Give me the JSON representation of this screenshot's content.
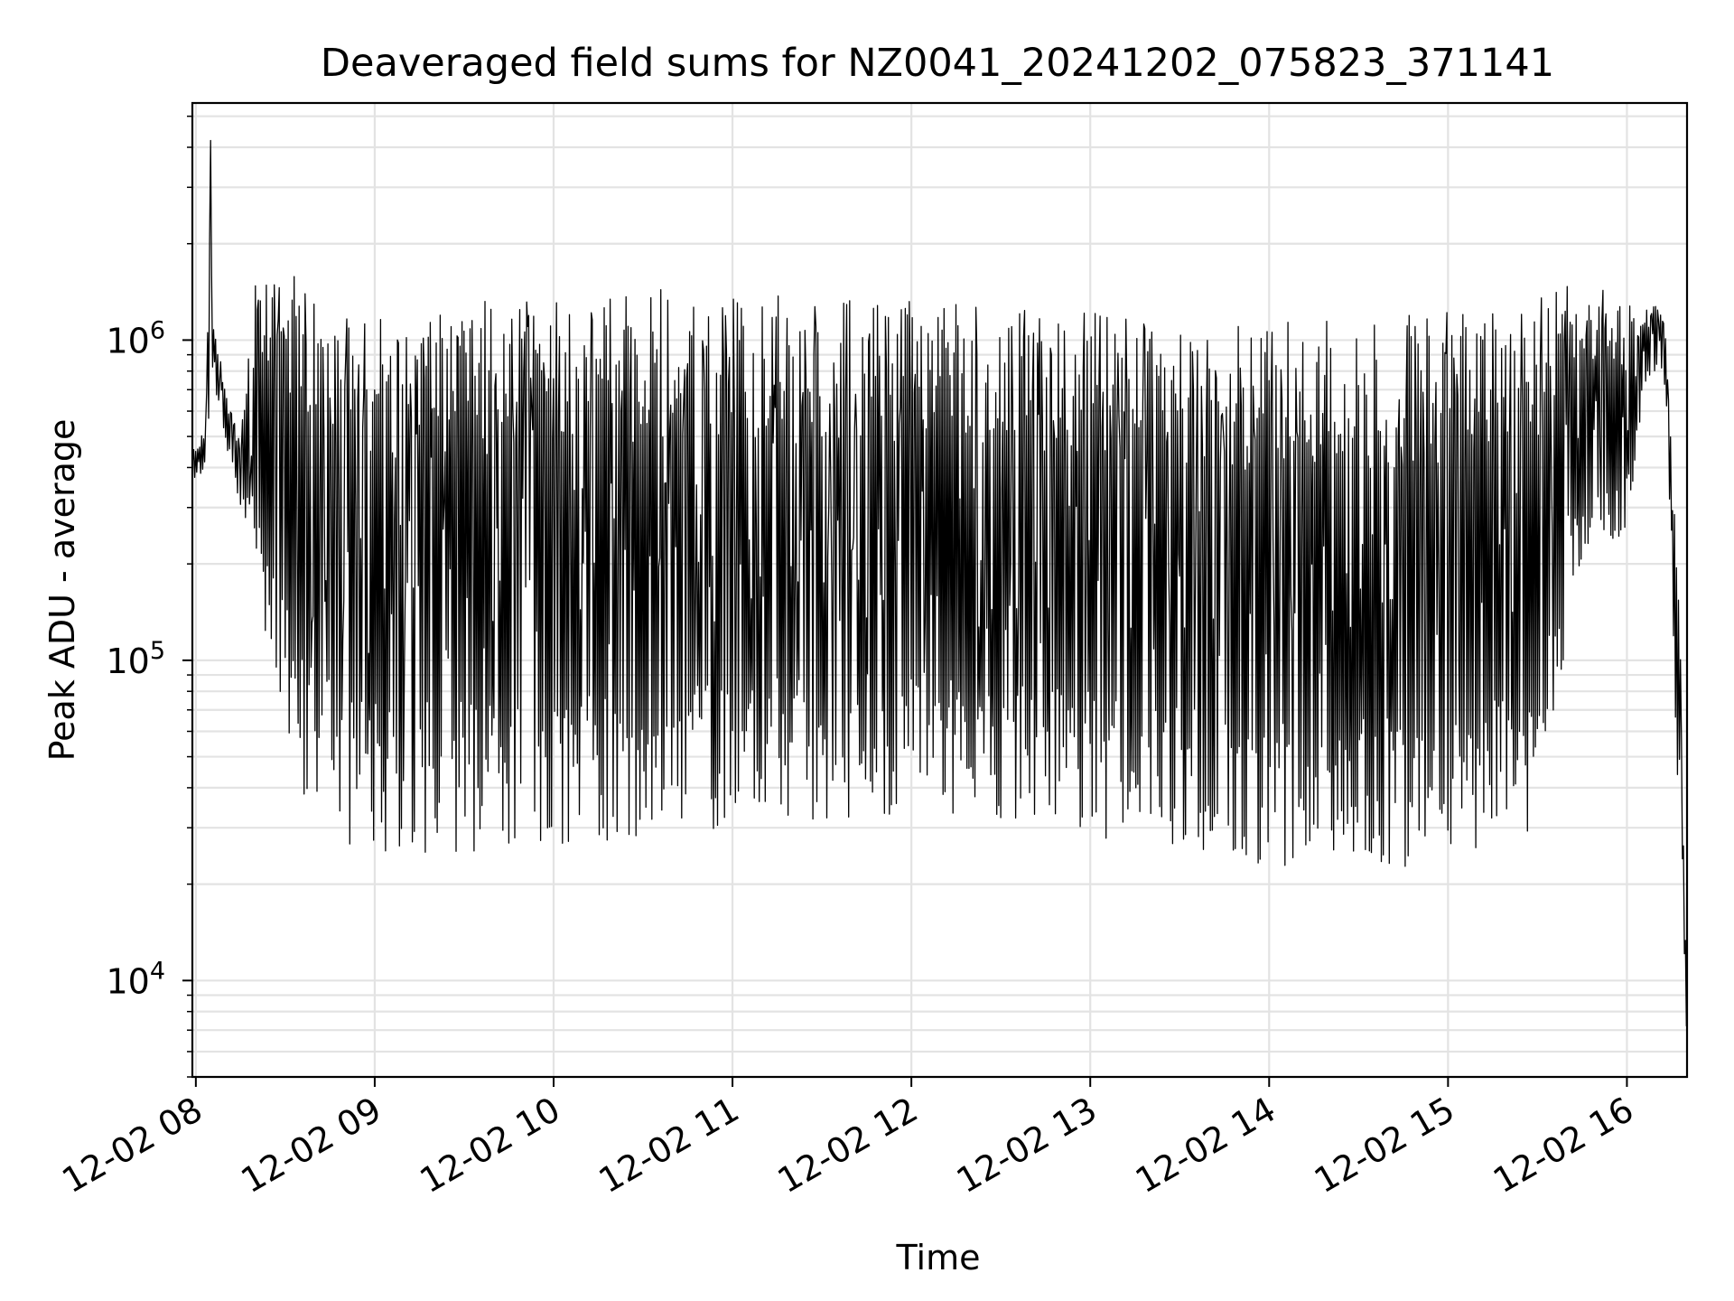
{
  "chart_data": {
    "type": "line",
    "title": "Deaveraged field sums for NZ0041_20241202_075823_371141",
    "xlabel": "Time",
    "ylabel": "Peak ADU - average",
    "x_ticks": [
      "12-02 08",
      "12-02 09",
      "12-02 10",
      "12-02 11",
      "12-02 12",
      "12-02 13",
      "12-02 14",
      "12-02 15",
      "12-02 16"
    ],
    "y_ticks": [
      {
        "base": "10",
        "exp": "4",
        "value": 10000
      },
      {
        "base": "10",
        "exp": "5",
        "value": 100000
      },
      {
        "base": "10",
        "exp": "6",
        "value": 1000000
      }
    ],
    "y_scale": "log",
    "ylim": [
      5000,
      5500000
    ],
    "xlim": [
      "2024-12-02 07:58:50",
      "2024-12-02 16:20:10"
    ],
    "grid": true,
    "line_color": "#000000",
    "series": [
      {
        "values_summary": "dense oscillating time series sampled roughly every ~20 s",
        "x": [
          "2024-12-02 07:58:58",
          "2024-12-02 08:03:00",
          "2024-12-02 08:05:00",
          "2024-12-02 08:05:30",
          "2024-12-02 08:07:00",
          "2024-12-02 08:10:00",
          "2024-12-02 08:15:00",
          "2024-12-02 08:20:00",
          "2024-12-02 08:25:00",
          "2024-12-02 08:30:00",
          "2024-12-02 08:35:00",
          "2024-12-02 08:40:00",
          "2024-12-02 08:45:00",
          "2024-12-02 08:50:00",
          "2024-12-02 08:55:00",
          "2024-12-02 09:00:00",
          "2024-12-02 09:30:00",
          "2024-12-02 10:00:00",
          "2024-12-02 10:30:00",
          "2024-12-02 11:00:00",
          "2024-12-02 11:30:00",
          "2024-12-02 12:00:00",
          "2024-12-02 12:30:00",
          "2024-12-02 13:00:00",
          "2024-12-02 13:30:00",
          "2024-12-02 14:00:00",
          "2024-12-02 14:30:00",
          "2024-12-02 15:00:00",
          "2024-12-02 15:30:00",
          "2024-12-02 15:45:00",
          "2024-12-02 16:00:00",
          "2024-12-02 16:05:00",
          "2024-12-02 16:10:00",
          "2024-12-02 16:13:00",
          "2024-12-02 16:16:00",
          "2024-12-02 16:18:00",
          "2024-12-02 16:20:00"
        ],
        "y_upper": [
          450000,
          550000,
          4200000,
          1200000,
          1000000,
          700000,
          500000,
          1500000,
          1600000,
          1650000,
          1600000,
          1500000,
          1400000,
          1300000,
          1250000,
          1250000,
          1300000,
          1400000,
          1450000,
          1400000,
          1350000,
          1350000,
          1300000,
          1250000,
          1200000,
          1150000,
          1150000,
          1250000,
          1400000,
          1600000,
          1300000,
          1300000,
          1300000,
          1100000,
          400000,
          100000,
          10000
        ],
        "y_lower": [
          350000,
          380000,
          400000,
          800000,
          650000,
          450000,
          300000,
          180000,
          100000,
          60000,
          40000,
          33000,
          30000,
          27000,
          26000,
          25000,
          25000,
          26000,
          28000,
          30000,
          32000,
          33000,
          32000,
          28000,
          24000,
          23000,
          22000,
          22000,
          30000,
          200000,
          230000,
          600000,
          800000,
          700000,
          60000,
          30000,
          7000
        ]
      }
    ]
  }
}
